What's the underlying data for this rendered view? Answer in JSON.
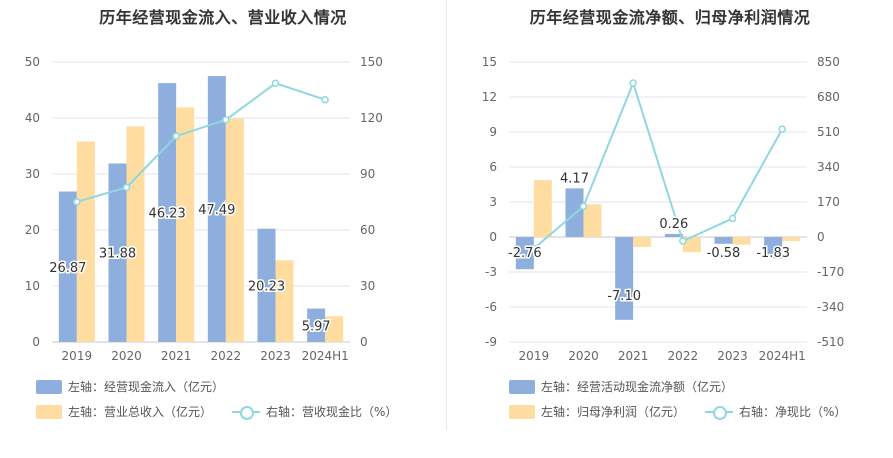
{
  "chart_data": [
    {
      "type": "bar",
      "title": "历年经营现金流入、营业收入情况",
      "categories": [
        "2019",
        "2020",
        "2021",
        "2022",
        "2023",
        "2024H1"
      ],
      "y_left_ticks": [
        "0",
        "10",
        "20",
        "30",
        "40",
        "50"
      ],
      "y_left_range": [
        0,
        50
      ],
      "y_right_ticks": [
        "0",
        "30",
        "60",
        "90",
        "120",
        "150"
      ],
      "y_right_range": [
        0,
        150
      ],
      "series": [
        {
          "name": "左轴：经营现金流入（亿元）",
          "axis": "left",
          "kind": "bar",
          "color": "#8eaedd",
          "values": [
            26.87,
            31.88,
            46.23,
            47.49,
            20.23,
            5.97
          ]
        },
        {
          "name": "左轴：营业总收入（亿元）",
          "axis": "left",
          "kind": "bar",
          "color": "#ffdca0",
          "values": [
            35.8,
            38.5,
            41.9,
            39.9,
            14.6,
            4.6
          ]
        },
        {
          "name": "右轴：营收现金比（%）",
          "axis": "right",
          "kind": "line",
          "color": "#8fd8df",
          "values": [
            75.1,
            82.8,
            110.3,
            119.0,
            138.6,
            129.8
          ]
        }
      ],
      "data_labels": [
        "26.87",
        "31.88",
        "46.23",
        "47.49",
        "20.23",
        "5.97"
      ]
    },
    {
      "type": "bar",
      "title": "历年经营现金流净额、归母净利润情况",
      "categories": [
        "2019",
        "2020",
        "2021",
        "2022",
        "2023",
        "2024H1"
      ],
      "y_left_ticks": [
        "-9",
        "-6",
        "-3",
        "0",
        "3",
        "6",
        "9",
        "12",
        "15"
      ],
      "y_left_range": [
        -9,
        15
      ],
      "y_right_ticks": [
        "-510",
        "-340",
        "-170",
        "0",
        "170",
        "340",
        "510",
        "680",
        "850"
      ],
      "y_right_range": [
        -510,
        850
      ],
      "series": [
        {
          "name": "左轴：经营活动现金流净额（亿元）",
          "axis": "left",
          "kind": "bar",
          "color": "#8eaedd",
          "values": [
            -2.76,
            4.17,
            -7.1,
            0.26,
            -0.58,
            -1.83
          ]
        },
        {
          "name": "左轴：归母净利润（亿元）",
          "axis": "left",
          "kind": "bar",
          "color": "#ffdca0",
          "values": [
            4.88,
            2.8,
            -0.85,
            -1.3,
            -0.65,
            -0.35
          ]
        },
        {
          "name": "右轴：净现比（%）",
          "axis": "right",
          "kind": "line",
          "color": "#8fd8df",
          "values": [
            -56,
            149,
            748,
            -20,
            90,
            524
          ]
        }
      ],
      "data_labels": [
        "-2.76",
        "4.17",
        "-7.10",
        "0.26",
        "-0.58",
        "-1.83"
      ]
    }
  ]
}
